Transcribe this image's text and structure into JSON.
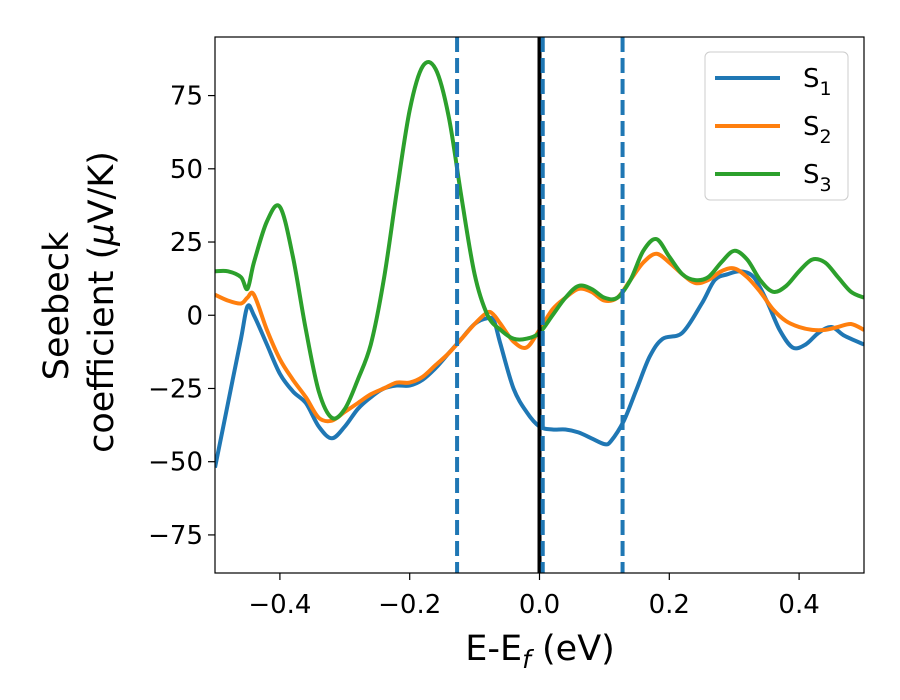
{
  "chart_data": {
    "type": "line",
    "xlabel": "E-E",
    "xlabel_sub": "f",
    "xlabel_unit": " (eV)",
    "ylabel_line1": "Seebeck",
    "ylabel_line2": "coefficient  (",
    "ylabel_mu": "μ",
    "ylabel_unit": "V/K)",
    "xlim": [
      -0.5,
      0.5
    ],
    "ylim": [
      -88,
      95
    ],
    "x_ticks": [
      -0.4,
      -0.2,
      0.0,
      0.2,
      0.4
    ],
    "x_tick_labels": [
      "−0.4",
      "−0.2",
      "0.0",
      "0.2",
      "0.4"
    ],
    "y_ticks": [
      -75,
      -50,
      -25,
      0,
      25,
      50,
      75
    ],
    "y_tick_labels": [
      "−75",
      "−50",
      "−25",
      "0",
      "25",
      "50",
      "75"
    ],
    "grid": false,
    "legend_position": "top-right",
    "vlines": [
      {
        "x": 0.0,
        "style": "solid",
        "color": "#000000"
      },
      {
        "x": -0.127,
        "style": "dashed",
        "color": "#1f77b4"
      },
      {
        "x": 0.005,
        "style": "dashed",
        "color": "#1f77b4"
      },
      {
        "x": 0.128,
        "style": "dashed",
        "color": "#1f77b4"
      }
    ],
    "series": [
      {
        "name": "S",
        "sub": "1",
        "color": "#1f77b4",
        "x": [
          -0.5,
          -0.48,
          -0.46,
          -0.45,
          -0.44,
          -0.42,
          -0.4,
          -0.38,
          -0.36,
          -0.34,
          -0.32,
          -0.3,
          -0.28,
          -0.26,
          -0.24,
          -0.22,
          -0.2,
          -0.18,
          -0.16,
          -0.14,
          -0.12,
          -0.1,
          -0.08,
          -0.07,
          -0.06,
          -0.04,
          -0.02,
          0.0,
          0.02,
          0.04,
          0.06,
          0.08,
          0.1,
          0.11,
          0.13,
          0.15,
          0.17,
          0.19,
          0.22,
          0.25,
          0.27,
          0.29,
          0.31,
          0.33,
          0.35,
          0.37,
          0.39,
          0.41,
          0.43,
          0.45,
          0.47,
          0.5
        ],
        "y": [
          -52,
          -30,
          -8,
          3,
          0,
          -10,
          -20,
          -26,
          -30,
          -38,
          -42,
          -38,
          -32,
          -28,
          -25,
          -24,
          -24,
          -22,
          -18,
          -13,
          -8,
          -3,
          -1,
          -2,
          -10,
          -25,
          -33,
          -38,
          -39,
          -39,
          -40,
          -42,
          -44,
          -43,
          -36,
          -25,
          -14,
          -8,
          -6,
          4,
          12,
          14,
          15,
          13,
          5,
          -5,
          -11,
          -10,
          -6,
          -4,
          -7,
          -10
        ]
      },
      {
        "name": "S",
        "sub": "2",
        "color": "#ff7f0e",
        "x": [
          -0.5,
          -0.48,
          -0.46,
          -0.45,
          -0.44,
          -0.42,
          -0.4,
          -0.38,
          -0.36,
          -0.34,
          -0.32,
          -0.3,
          -0.28,
          -0.26,
          -0.24,
          -0.22,
          -0.2,
          -0.18,
          -0.16,
          -0.14,
          -0.12,
          -0.1,
          -0.08,
          -0.07,
          -0.06,
          -0.04,
          -0.02,
          0.0,
          0.02,
          0.04,
          0.06,
          0.08,
          0.1,
          0.12,
          0.14,
          0.16,
          0.18,
          0.2,
          0.22,
          0.24,
          0.26,
          0.28,
          0.3,
          0.32,
          0.34,
          0.36,
          0.38,
          0.4,
          0.42,
          0.44,
          0.46,
          0.48,
          0.5
        ],
        "y": [
          7,
          5,
          4,
          6,
          7,
          -5,
          -15,
          -22,
          -28,
          -35,
          -36,
          -33,
          -30,
          -27,
          -25,
          -23,
          -23,
          -21,
          -17,
          -13,
          -8,
          -3,
          1,
          0,
          -3,
          -9,
          -11,
          -5,
          2,
          6,
          9,
          8,
          5,
          6,
          12,
          18,
          21,
          18,
          14,
          11,
          12,
          15,
          16,
          13,
          8,
          2,
          -2,
          -4,
          -5,
          -5,
          -4,
          -3,
          -5
        ]
      },
      {
        "name": "S",
        "sub": "3",
        "color": "#2ca02c",
        "x": [
          -0.5,
          -0.48,
          -0.46,
          -0.45,
          -0.44,
          -0.42,
          -0.4,
          -0.38,
          -0.36,
          -0.34,
          -0.32,
          -0.3,
          -0.28,
          -0.26,
          -0.24,
          -0.22,
          -0.2,
          -0.18,
          -0.16,
          -0.14,
          -0.12,
          -0.1,
          -0.08,
          -0.06,
          -0.04,
          -0.02,
          0.0,
          0.02,
          0.04,
          0.06,
          0.08,
          0.1,
          0.12,
          0.14,
          0.16,
          0.18,
          0.2,
          0.22,
          0.24,
          0.26,
          0.28,
          0.3,
          0.32,
          0.34,
          0.36,
          0.38,
          0.4,
          0.42,
          0.44,
          0.46,
          0.48,
          0.5
        ],
        "y": [
          15,
          15,
          13,
          9,
          18,
          32,
          37,
          20,
          -5,
          -26,
          -35,
          -32,
          -22,
          -10,
          12,
          42,
          70,
          85,
          84,
          68,
          40,
          14,
          0,
          -5,
          -8,
          -8,
          -6,
          0,
          6,
          10,
          9,
          6,
          6,
          12,
          22,
          26,
          20,
          14,
          12,
          13,
          18,
          22,
          19,
          12,
          8,
          10,
          15,
          19,
          18,
          13,
          8,
          6
        ]
      }
    ]
  }
}
